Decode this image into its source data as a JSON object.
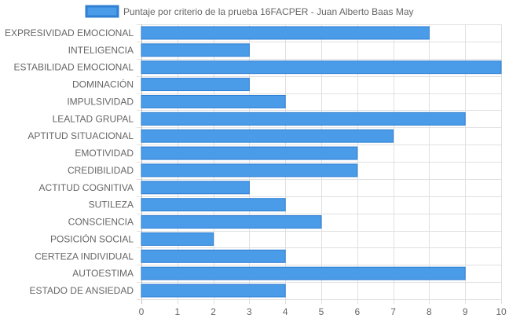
{
  "chart_data": {
    "type": "bar",
    "orientation": "horizontal",
    "categories": [
      "EXPRESIVIDAD EMOCIONAL",
      "INTELIGENCIA",
      "ESTABILIDAD EMOCIONAL",
      "DOMINACIÓN",
      "IMPULSIVIDAD",
      "LEALTAD GRUPAL",
      "APTITUD SITUACIONAL",
      "EMOTIVIDAD",
      "CREDIBILIDAD",
      "ACTITUD COGNITIVA",
      "SUTILEZA",
      "CONSCIENCIA",
      "POSICIÓN SOCIAL",
      "CERTEZA INDIVIDUAL",
      "AUTOESTIMA",
      "ESTADO DE ANSIEDAD"
    ],
    "series": [
      {
        "name": "Puntaje por criterio de la prueba 16FACPER - Juan Alberto Baas May",
        "values": [
          8,
          3,
          10,
          3,
          4,
          9,
          7,
          6,
          6,
          3,
          4,
          5,
          2,
          4,
          9,
          4
        ],
        "color": "#4a9be8",
        "border_color": "#2f7fd3"
      }
    ],
    "xlim": [
      0,
      10
    ],
    "x_ticks": [
      0,
      1,
      2,
      3,
      4,
      5,
      6,
      7,
      8,
      9,
      10
    ],
    "grid": true,
    "legend_position": "top"
  }
}
